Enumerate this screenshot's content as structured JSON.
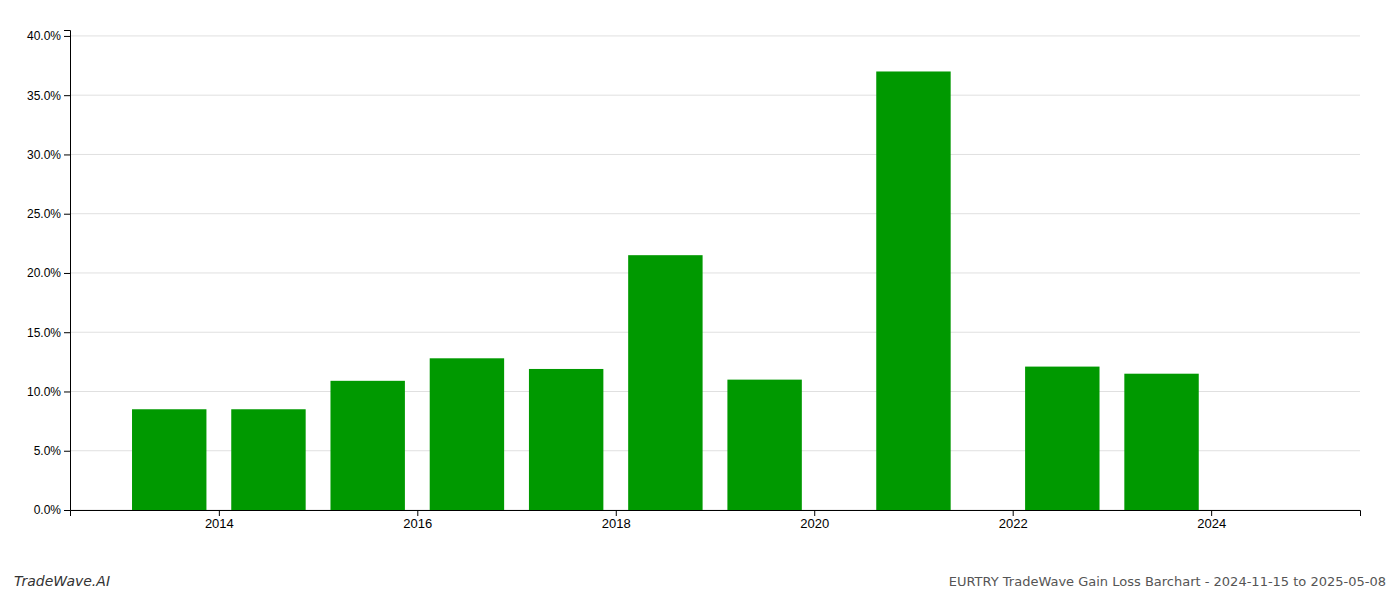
{
  "chart_data": {
    "type": "bar",
    "title": "EURTRY TradeWave Gain Loss Barchart - 2024-11-15 to 2025-05-08",
    "annotations": [
      "TradeWave.AI"
    ],
    "x": [
      2013.5,
      2014.5,
      2015.5,
      2016.5,
      2017.5,
      2018.5,
      2019.5,
      2021.0,
      2021.7,
      2022.5,
      2023.5
    ],
    "values": [
      0.085,
      0.085,
      0.109,
      0.128,
      0.119,
      0.215,
      0.11,
      0.37,
      0.0,
      0.121,
      0.115
    ],
    "color": "#009900",
    "xlim": [
      2012.5,
      2025.5
    ],
    "xticks": [
      2014,
      2016,
      2018,
      2020,
      2022,
      2024
    ],
    "ylim": [
      0.0,
      0.405
    ],
    "yticks": [
      {
        "value": 0.0,
        "label": "0.0%"
      },
      {
        "value": 0.05,
        "label": "5.0%"
      },
      {
        "value": 0.1,
        "label": "10.0%"
      },
      {
        "value": 0.15,
        "label": "15.0%"
      },
      {
        "value": 0.2,
        "label": "20.0%"
      },
      {
        "value": 0.25,
        "label": "25.0%"
      },
      {
        "value": 0.3,
        "label": "30.0%"
      },
      {
        "value": 0.35,
        "label": "35.0%"
      },
      {
        "value": 0.4,
        "label": "40.0%"
      }
    ],
    "grid": true
  }
}
